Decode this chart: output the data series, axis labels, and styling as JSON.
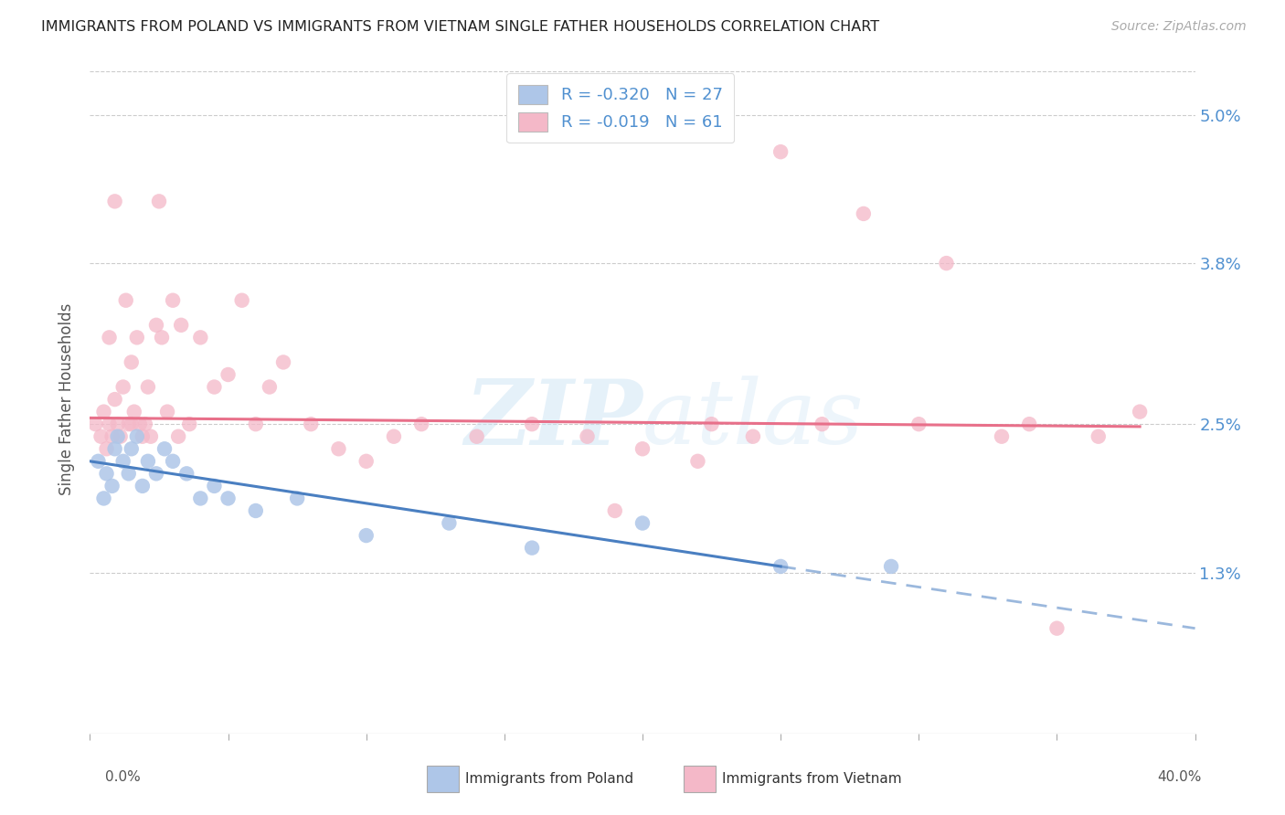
{
  "title": "IMMIGRANTS FROM POLAND VS IMMIGRANTS FROM VIETNAM SINGLE FATHER HOUSEHOLDS CORRELATION CHART",
  "source": "Source: ZipAtlas.com",
  "ylabel": "Single Father Households",
  "ytick_values": [
    1.3,
    2.5,
    3.8,
    5.0
  ],
  "xlim": [
    0.0,
    40.0
  ],
  "ylim": [
    0.0,
    5.4
  ],
  "color_poland": "#aec6e8",
  "color_vietnam": "#f4b8c8",
  "line_color_poland": "#4a7fc1",
  "line_color_vietnam": "#e8708a",
  "background_color": "#ffffff",
  "poland_scatter_x": [
    0.3,
    0.5,
    0.6,
    0.8,
    0.9,
    1.0,
    1.2,
    1.4,
    1.5,
    1.7,
    1.9,
    2.1,
    2.4,
    2.7,
    3.0,
    3.5,
    4.0,
    4.5,
    5.0,
    6.0,
    7.5,
    10.0,
    13.0,
    16.0,
    20.0,
    25.0,
    29.0
  ],
  "poland_scatter_y": [
    2.2,
    1.9,
    2.1,
    2.0,
    2.3,
    2.4,
    2.2,
    2.1,
    2.3,
    2.4,
    2.0,
    2.2,
    2.1,
    2.3,
    2.2,
    2.1,
    1.9,
    2.0,
    1.9,
    1.8,
    1.9,
    1.6,
    1.7,
    1.5,
    1.7,
    1.35,
    1.35
  ],
  "vietnam_scatter_x": [
    0.2,
    0.4,
    0.5,
    0.6,
    0.7,
    0.8,
    0.9,
    1.0,
    1.1,
    1.2,
    1.3,
    1.4,
    1.5,
    1.6,
    1.7,
    1.8,
    1.9,
    2.0,
    2.1,
    2.2,
    2.4,
    2.6,
    2.8,
    3.0,
    3.3,
    3.6,
    4.0,
    4.5,
    5.0,
    5.5,
    6.0,
    6.5,
    7.0,
    8.0,
    9.0,
    10.0,
    11.0,
    12.0,
    14.0,
    16.0,
    18.0,
    19.0,
    20.0,
    22.0,
    24.0,
    25.0,
    26.5,
    28.0,
    30.0,
    31.0,
    33.0,
    34.0,
    35.0,
    36.5,
    38.0,
    2.5,
    3.2,
    1.5,
    0.9,
    0.7,
    22.5
  ],
  "vietnam_scatter_y": [
    2.5,
    2.4,
    2.6,
    2.3,
    2.5,
    2.4,
    2.7,
    2.5,
    2.4,
    2.8,
    3.5,
    2.5,
    3.0,
    2.6,
    3.2,
    2.5,
    2.4,
    2.5,
    2.8,
    2.4,
    3.3,
    3.2,
    2.6,
    3.5,
    3.3,
    2.5,
    3.2,
    2.8,
    2.9,
    3.5,
    2.5,
    2.8,
    3.0,
    2.5,
    2.3,
    2.2,
    2.4,
    2.5,
    2.4,
    2.5,
    2.4,
    1.8,
    2.3,
    2.2,
    2.4,
    4.7,
    2.5,
    4.2,
    2.5,
    3.8,
    2.4,
    2.5,
    0.85,
    2.4,
    2.6,
    4.3,
    2.4,
    2.5,
    4.3,
    3.2,
    2.5
  ],
  "poland_line_x0": 0.0,
  "poland_line_y0": 2.2,
  "poland_line_x1": 25.0,
  "poland_line_y1": 1.35,
  "poland_dash_x0": 25.0,
  "poland_dash_y0": 1.35,
  "poland_dash_x1": 40.0,
  "poland_dash_y1": 0.85,
  "vietnam_line_x0": 0.0,
  "vietnam_line_y0": 2.55,
  "vietnam_line_x1": 38.0,
  "vietnam_line_y1": 2.48
}
